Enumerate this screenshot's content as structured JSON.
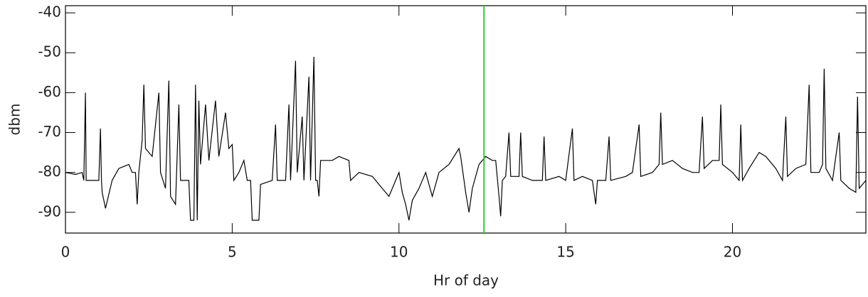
{
  "chart_data": {
    "type": "line",
    "xlabel": "Hr of day",
    "ylabel": "dbm",
    "xlim": [
      0,
      24
    ],
    "ylim": [
      -95.2,
      -38.2
    ],
    "xticks": [
      0,
      5,
      10,
      15,
      20
    ],
    "yticks": [
      -40,
      -50,
      -60,
      -70,
      -80,
      -90
    ],
    "vline": {
      "x": 12.55,
      "color": "#33cc33"
    },
    "series": [
      {
        "color": "#000000",
        "x": [
          0,
          0.3,
          0.5,
          0.55,
          0.6,
          0.62,
          1.0,
          1.05,
          1.08,
          1.1,
          1.2,
          1.4,
          1.6,
          1.9,
          2.0,
          2.1,
          2.15,
          2.2,
          2.3,
          2.35,
          2.4,
          2.6,
          2.8,
          2.85,
          3.0,
          3.1,
          3.15,
          3.3,
          3.4,
          3.45,
          3.6,
          3.7,
          3.75,
          3.85,
          3.9,
          3.95,
          4.0,
          4.05,
          4.2,
          4.3,
          4.5,
          4.6,
          4.8,
          4.9,
          5.0,
          5.05,
          5.2,
          5.35,
          5.45,
          5.55,
          5.6,
          5.8,
          5.85,
          6.2,
          6.3,
          6.35,
          6.6,
          6.7,
          6.75,
          6.9,
          6.95,
          7.1,
          7.15,
          7.3,
          7.35,
          7.45,
          7.5,
          7.55,
          7.6,
          7.65,
          8.0,
          8.2,
          8.5,
          8.55,
          8.8,
          9.2,
          9.5,
          9.7,
          9.9,
          10.0,
          10.1,
          10.2,
          10.3,
          10.4,
          10.6,
          10.8,
          10.9,
          11.0,
          11.2,
          11.5,
          11.8,
          11.85,
          11.95,
          12.0,
          12.1,
          12.2,
          12.4,
          12.6,
          12.8,
          12.9,
          13.0,
          13.05,
          13.1,
          13.2,
          13.3,
          13.35,
          13.6,
          13.65,
          13.7,
          14.0,
          14.3,
          14.35,
          14.4,
          14.8,
          15.0,
          15.2,
          15.25,
          15.5,
          15.8,
          15.9,
          15.95,
          16.2,
          16.3,
          16.35,
          16.8,
          17.0,
          17.2,
          17.25,
          17.6,
          17.8,
          17.85,
          17.9,
          18.2,
          18.5,
          18.8,
          19.0,
          19.1,
          19.15,
          19.4,
          19.6,
          19.65,
          19.7,
          20.0,
          20.2,
          20.25,
          20.3,
          20.5,
          20.8,
          21.0,
          21.3,
          21.5,
          21.6,
          21.65,
          21.9,
          22.2,
          22.3,
          22.35,
          22.6,
          22.7,
          22.75,
          22.8,
          23.0,
          23.2,
          23.25,
          23.5,
          23.7,
          23.75,
          23.8,
          24.0
        ],
        "values": [
          -80,
          -80.5,
          -80,
          -82,
          -60,
          -82,
          -82,
          -69,
          -82,
          -85,
          -89,
          -82,
          -79,
          -78,
          -80,
          -80,
          -88,
          -80,
          -72,
          -58,
          -74,
          -76,
          -60,
          -80,
          -84,
          -57,
          -86,
          -88,
          -63,
          -82,
          -82,
          -82,
          -92,
          -92,
          -58,
          -92,
          -62,
          -78,
          -63,
          -77,
          -62,
          -76,
          -65,
          -74,
          -73,
          -82,
          -80,
          -77,
          -82,
          -82,
          -92,
          -92,
          -83,
          -82,
          -68,
          -82,
          -82,
          -63,
          -82,
          -52,
          -80,
          -66,
          -82,
          -56,
          -82,
          -51,
          -82,
          -82,
          -86,
          -77,
          -77,
          -76,
          -77,
          -82,
          -80,
          -81,
          -84,
          -86,
          -82,
          -80,
          -85,
          -88,
          -92,
          -87,
          -84,
          -80,
          -83,
          -86,
          -80,
          -78,
          -74,
          -76,
          -82,
          -85,
          -90,
          -84,
          -78,
          -76,
          -77,
          -77,
          -86,
          -91,
          -82,
          -81,
          -70,
          -81,
          -81,
          -70,
          -81,
          -82,
          -82,
          -71,
          -82,
          -81,
          -82,
          -69,
          -82,
          -81,
          -82,
          -88,
          -82,
          -82,
          -71,
          -82,
          -81,
          -80,
          -68,
          -81,
          -80,
          -78,
          -65,
          -78,
          -77,
          -79,
          -80,
          -80,
          -66,
          -79,
          -77,
          -77,
          -63,
          -78,
          -80,
          -82,
          -68,
          -82,
          -79,
          -75,
          -76,
          -79,
          -82,
          -66,
          -81,
          -79,
          -78,
          -58,
          -80,
          -80,
          -78,
          -54,
          -79,
          -82,
          -70,
          -82,
          -84,
          -85,
          -61,
          -84,
          -82
        ]
      }
    ]
  }
}
